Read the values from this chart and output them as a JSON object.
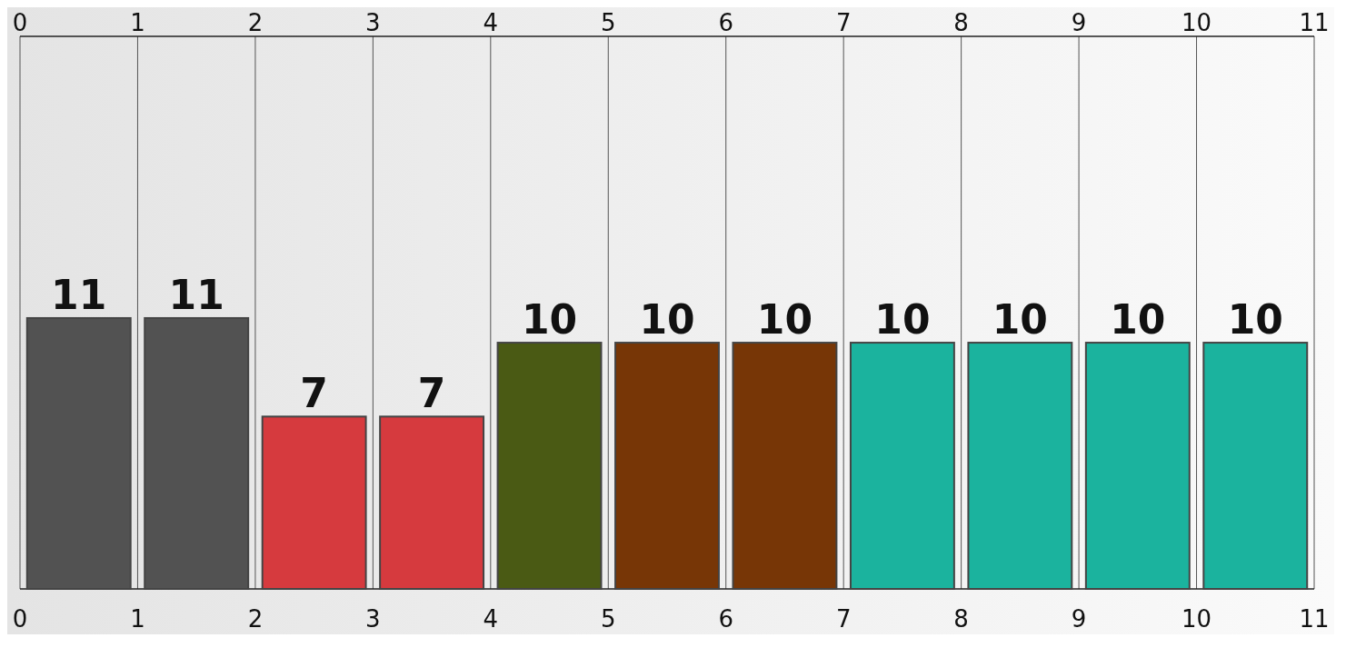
{
  "chart_data": {
    "type": "bar",
    "x": [
      0.5,
      1.5,
      2.5,
      3.5,
      4.5,
      5.5,
      6.5,
      7.5,
      8.5,
      9.5,
      10.5
    ],
    "values": [
      11,
      11,
      7,
      7,
      10,
      10,
      10,
      10,
      10,
      10,
      10
    ],
    "colors": [
      "#525252",
      "#525252",
      "#d63a3e",
      "#d63a3e",
      "#4a5a14",
      "#773606",
      "#773606",
      "#1bb39e",
      "#1bb39e",
      "#1bb39e",
      "#1bb39e"
    ],
    "xlim": [
      0,
      11
    ],
    "xticks": [
      0,
      1,
      2,
      3,
      4,
      5,
      6,
      7,
      8,
      9,
      10,
      11
    ],
    "x2lim": [
      0,
      11
    ],
    "x2ticks": [
      0,
      1,
      2,
      3,
      4,
      5,
      6,
      7,
      8,
      9,
      10,
      11
    ],
    "data_labels": true,
    "grid": "x"
  }
}
